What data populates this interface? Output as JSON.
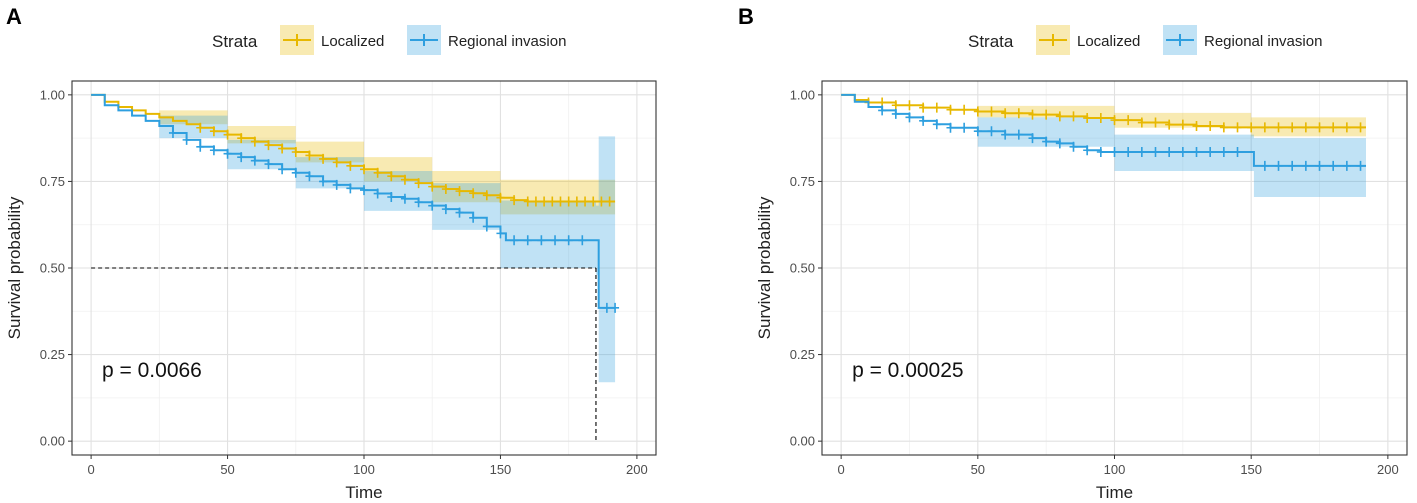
{
  "chart_data": [
    {
      "type": "line",
      "panel_label": "A",
      "xlabel": "Time",
      "ylabel": "Survival probability",
      "xlim": [
        -7,
        207
      ],
      "ylim": [
        -0.04,
        1.04
      ],
      "x_ticks": [
        0,
        50,
        100,
        150,
        200
      ],
      "y_ticks": [
        0.0,
        0.25,
        0.5,
        0.75,
        1.0
      ],
      "x_tick_labels": [
        "0",
        "50",
        "100",
        "150",
        "200"
      ],
      "y_tick_labels": [
        "0.00",
        "0.25",
        "0.50",
        "0.75",
        "1.00"
      ],
      "legend": {
        "title": "Strata",
        "position": "top"
      },
      "annotation": "p = 0.0066",
      "median_line": {
        "y": 0.5,
        "x": 185
      },
      "series": [
        {
          "name": "Localized",
          "color": "#E7B800",
          "steps": [
            [
              0,
              1.0
            ],
            [
              5,
              0.98
            ],
            [
              10,
              0.965
            ],
            [
              15,
              0.955
            ],
            [
              20,
              0.945
            ],
            [
              25,
              0.935
            ],
            [
              30,
              0.925
            ],
            [
              35,
              0.915
            ],
            [
              40,
              0.905
            ],
            [
              45,
              0.895
            ],
            [
              50,
              0.885
            ],
            [
              55,
              0.875
            ],
            [
              60,
              0.865
            ],
            [
              65,
              0.855
            ],
            [
              70,
              0.845
            ],
            [
              75,
              0.835
            ],
            [
              80,
              0.825
            ],
            [
              85,
              0.815
            ],
            [
              90,
              0.805
            ],
            [
              95,
              0.795
            ],
            [
              100,
              0.785
            ],
            [
              105,
              0.775
            ],
            [
              110,
              0.765
            ],
            [
              115,
              0.755
            ],
            [
              120,
              0.745
            ],
            [
              125,
              0.735
            ],
            [
              130,
              0.728
            ],
            [
              135,
              0.722
            ],
            [
              140,
              0.716
            ],
            [
              145,
              0.71
            ],
            [
              150,
              0.703
            ],
            [
              155,
              0.696
            ],
            [
              160,
              0.692
            ],
            [
              192,
              0.692
            ]
          ],
          "ci_upper": [
            [
              0,
              1.0
            ],
            [
              25,
              0.955
            ],
            [
              50,
              0.91
            ],
            [
              75,
              0.865
            ],
            [
              100,
              0.82
            ],
            [
              125,
              0.78
            ],
            [
              150,
              0.755
            ],
            [
              192,
              0.75
            ]
          ],
          "ci_lower": [
            [
              0,
              1.0
            ],
            [
              25,
              0.915
            ],
            [
              50,
              0.86
            ],
            [
              75,
              0.805
            ],
            [
              100,
              0.75
            ],
            [
              125,
              0.69
            ],
            [
              150,
              0.655
            ],
            [
              192,
              0.64
            ]
          ],
          "censor_x": [
            40,
            45,
            50,
            55,
            60,
            65,
            70,
            75,
            80,
            85,
            90,
            95,
            100,
            105,
            110,
            115,
            120,
            125,
            130,
            135,
            140,
            145,
            150,
            155,
            160,
            163,
            166,
            169,
            172,
            175,
            178,
            181,
            184,
            187,
            190
          ]
        },
        {
          "name": "Regional invasion",
          "color": "#2E9FDF",
          "steps": [
            [
              0,
              1.0
            ],
            [
              5,
              0.97
            ],
            [
              10,
              0.955
            ],
            [
              15,
              0.94
            ],
            [
              20,
              0.925
            ],
            [
              25,
              0.91
            ],
            [
              30,
              0.89
            ],
            [
              35,
              0.87
            ],
            [
              40,
              0.85
            ],
            [
              45,
              0.84
            ],
            [
              50,
              0.83
            ],
            [
              55,
              0.82
            ],
            [
              60,
              0.81
            ],
            [
              65,
              0.8
            ],
            [
              70,
              0.785
            ],
            [
              75,
              0.775
            ],
            [
              80,
              0.765
            ],
            [
              85,
              0.75
            ],
            [
              90,
              0.74
            ],
            [
              95,
              0.73
            ],
            [
              100,
              0.725
            ],
            [
              105,
              0.715
            ],
            [
              110,
              0.705
            ],
            [
              115,
              0.7
            ],
            [
              120,
              0.69
            ],
            [
              125,
              0.68
            ],
            [
              130,
              0.67
            ],
            [
              135,
              0.66
            ],
            [
              140,
              0.645
            ],
            [
              145,
              0.62
            ],
            [
              150,
              0.6
            ],
            [
              152,
              0.58
            ],
            [
              185,
              0.58
            ],
            [
              186,
              0.385
            ],
            [
              192,
              0.385
            ]
          ],
          "ci_upper": [
            [
              0,
              1.0
            ],
            [
              25,
              0.94
            ],
            [
              50,
              0.87
            ],
            [
              75,
              0.82
            ],
            [
              100,
              0.78
            ],
            [
              125,
              0.745
            ],
            [
              150,
              0.695
            ],
            [
              185,
              0.68
            ],
            [
              186,
              0.88
            ],
            [
              192,
              0.88
            ]
          ],
          "ci_lower": [
            [
              0,
              1.0
            ],
            [
              25,
              0.875
            ],
            [
              50,
              0.785
            ],
            [
              75,
              0.73
            ],
            [
              100,
              0.665
            ],
            [
              125,
              0.61
            ],
            [
              150,
              0.5
            ],
            [
              185,
              0.48
            ],
            [
              186,
              0.17
            ],
            [
              192,
              0.17
            ]
          ],
          "censor_x": [
            30,
            35,
            40,
            45,
            50,
            55,
            60,
            65,
            70,
            75,
            80,
            85,
            90,
            95,
            100,
            105,
            110,
            115,
            120,
            125,
            130,
            135,
            140,
            145,
            150,
            155,
            160,
            165,
            170,
            175,
            180,
            189,
            192
          ]
        }
      ]
    },
    {
      "type": "line",
      "panel_label": "B",
      "xlabel": "Time",
      "ylabel": "Survival probability",
      "xlim": [
        -7,
        207
      ],
      "ylim": [
        -0.04,
        1.04
      ],
      "x_ticks": [
        0,
        50,
        100,
        150,
        200
      ],
      "y_ticks": [
        0.0,
        0.25,
        0.5,
        0.75,
        1.0
      ],
      "x_tick_labels": [
        "0",
        "50",
        "100",
        "150",
        "200"
      ],
      "y_tick_labels": [
        "0.00",
        "0.25",
        "0.50",
        "0.75",
        "1.00"
      ],
      "legend": {
        "title": "Strata",
        "position": "top"
      },
      "annotation": "p = 0.00025",
      "series": [
        {
          "name": "Localized",
          "color": "#E7B800",
          "steps": [
            [
              0,
              1.0
            ],
            [
              5,
              0.985
            ],
            [
              10,
              0.978
            ],
            [
              20,
              0.97
            ],
            [
              30,
              0.963
            ],
            [
              40,
              0.957
            ],
            [
              50,
              0.952
            ],
            [
              60,
              0.947
            ],
            [
              70,
              0.943
            ],
            [
              80,
              0.938
            ],
            [
              90,
              0.933
            ],
            [
              100,
              0.927
            ],
            [
              110,
              0.92
            ],
            [
              120,
              0.914
            ],
            [
              130,
              0.91
            ],
            [
              140,
              0.906
            ],
            [
              192,
              0.906
            ]
          ],
          "ci_upper": [
            [
              0,
              1.0
            ],
            [
              50,
              0.968
            ],
            [
              100,
              0.948
            ],
            [
              150,
              0.935
            ],
            [
              192,
              0.932
            ]
          ],
          "ci_lower": [
            [
              0,
              1.0
            ],
            [
              50,
              0.935
            ],
            [
              100,
              0.905
            ],
            [
              150,
              0.88
            ],
            [
              192,
              0.872
            ]
          ],
          "censor_x": [
            10,
            15,
            20,
            25,
            30,
            35,
            40,
            45,
            50,
            55,
            60,
            65,
            70,
            75,
            80,
            85,
            90,
            95,
            100,
            105,
            110,
            115,
            120,
            125,
            130,
            135,
            140,
            145,
            150,
            155,
            160,
            165,
            170,
            175,
            180,
            185,
            190
          ]
        },
        {
          "name": "Regional invasion",
          "color": "#2E9FDF",
          "steps": [
            [
              0,
              1.0
            ],
            [
              5,
              0.98
            ],
            [
              10,
              0.965
            ],
            [
              15,
              0.955
            ],
            [
              20,
              0.945
            ],
            [
              25,
              0.935
            ],
            [
              30,
              0.925
            ],
            [
              35,
              0.915
            ],
            [
              40,
              0.905
            ],
            [
              50,
              0.895
            ],
            [
              60,
              0.885
            ],
            [
              70,
              0.875
            ],
            [
              75,
              0.865
            ],
            [
              80,
              0.86
            ],
            [
              85,
              0.85
            ],
            [
              90,
              0.84
            ],
            [
              95,
              0.835
            ],
            [
              100,
              0.835
            ],
            [
              150,
              0.835
            ],
            [
              151,
              0.795
            ],
            [
              192,
              0.795
            ]
          ],
          "ci_upper": [
            [
              0,
              1.0
            ],
            [
              50,
              0.935
            ],
            [
              100,
              0.885
            ],
            [
              150,
              0.885
            ],
            [
              151,
              0.875
            ],
            [
              192,
              0.875
            ]
          ],
          "ci_lower": [
            [
              0,
              1.0
            ],
            [
              50,
              0.85
            ],
            [
              100,
              0.78
            ],
            [
              150,
              0.78
            ],
            [
              151,
              0.705
            ],
            [
              192,
              0.705
            ]
          ],
          "censor_x": [
            15,
            20,
            25,
            30,
            35,
            40,
            45,
            50,
            55,
            60,
            65,
            70,
            75,
            80,
            85,
            90,
            95,
            100,
            105,
            110,
            115,
            120,
            125,
            130,
            135,
            140,
            145,
            155,
            160,
            165,
            170,
            175,
            180,
            185,
            190
          ]
        }
      ]
    }
  ]
}
